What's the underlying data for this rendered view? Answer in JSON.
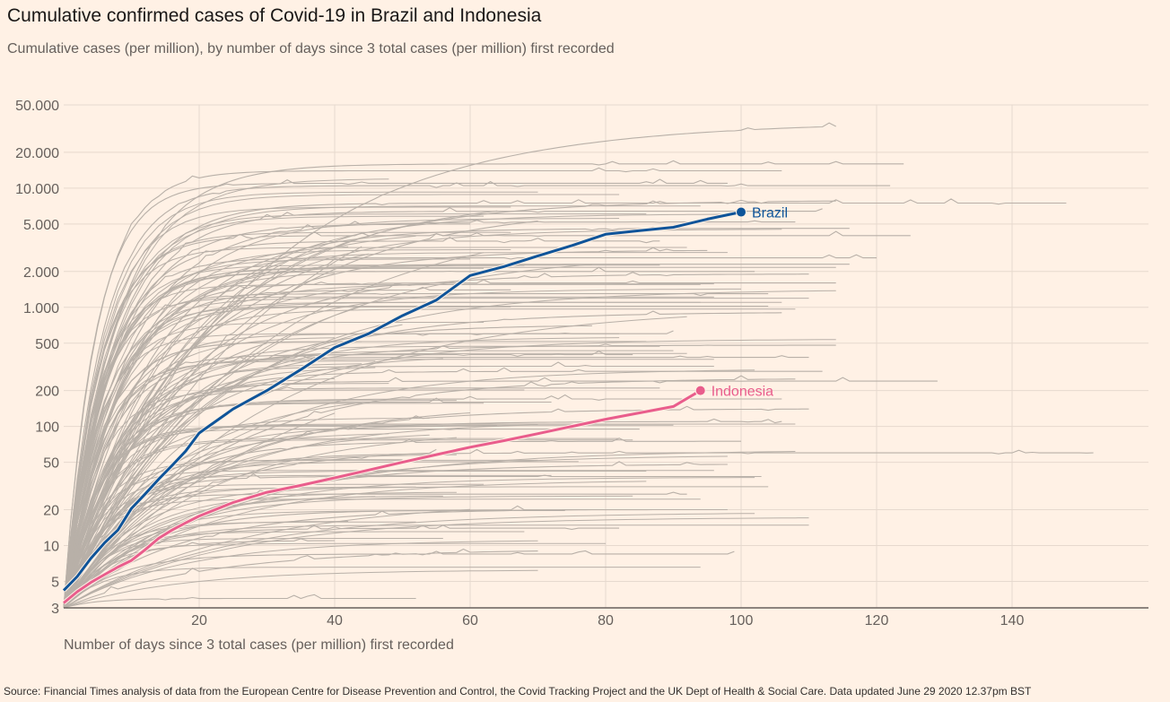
{
  "header": {
    "title": "Cumulative confirmed cases of Covid-19 in Brazil and Indonesia",
    "subtitle": "Cumulative cases (per million), by number of days since 3 total cases (per million) first recorded"
  },
  "footer": {
    "source": "Source: Financial Times analysis of data from the European Centre for Disease Prevention and Control, the Covid Tracking Project and the UK Dept of Health & Social Care. Data updated June 29 2020 12.37pm BST"
  },
  "colors": {
    "background": "#fff1e5",
    "grid": "#e6d9ce",
    "axis": "#66605c",
    "other": "#b8b0a8",
    "brazil": "#0f5499",
    "indonesia": "#e95d8c"
  },
  "chart_data": {
    "type": "line",
    "title": "Cumulative confirmed cases of Covid-19 in Brazil and Indonesia",
    "subtitle": "Cumulative cases (per million), by number of days since 3 total cases (per million) first recorded",
    "xlabel": "Number of days since 3 total cases (per million) first recorded",
    "ylabel": "",
    "yscale": "log",
    "xlim": [
      0,
      160
    ],
    "ylim": [
      3,
      50000
    ],
    "x_ticks": [
      20,
      40,
      60,
      80,
      100,
      120,
      140
    ],
    "x_tick_labels": [
      "20",
      "40",
      "60",
      "80",
      "100",
      "120",
      "140"
    ],
    "y_ticks": [
      3,
      5,
      10,
      20,
      50,
      100,
      200,
      500,
      1000,
      2000,
      5000,
      10000,
      20000,
      50000
    ],
    "y_tick_labels": [
      "3",
      "5",
      "10",
      "20",
      "50",
      "100",
      "200",
      "500",
      "1.000",
      "2.000",
      "5.000",
      "10.000",
      "20.000",
      "50.000"
    ],
    "grid": true,
    "highlighted_series": [
      {
        "name": "Brazil",
        "label": "Brazil",
        "color": "#0f5499",
        "x": [
          0,
          2,
          4,
          6,
          8,
          10,
          12,
          14,
          16,
          18,
          20,
          25,
          30,
          35,
          40,
          45,
          50,
          55,
          60,
          65,
          70,
          75,
          80,
          85,
          90,
          95,
          100
        ],
        "y": [
          4.2,
          5.5,
          7.8,
          10.5,
          13.5,
          20.5,
          27,
          36,
          47,
          62,
          88,
          140,
          200,
          300,
          460,
          600,
          850,
          1150,
          1850,
          2200,
          2700,
          3300,
          4100,
          4400,
          4700,
          5500,
          6300
        ]
      },
      {
        "name": "Indonesia",
        "label": "Indonesia",
        "color": "#e95d8c",
        "x": [
          0,
          2,
          4,
          6,
          8,
          10,
          12,
          14,
          16,
          18,
          20,
          25,
          30,
          35,
          40,
          45,
          50,
          55,
          60,
          65,
          70,
          75,
          80,
          85,
          90,
          94
        ],
        "y": [
          3.3,
          4.1,
          4.9,
          5.7,
          6.6,
          7.5,
          9.2,
          11.5,
          13.5,
          15.5,
          17.7,
          23,
          28,
          32,
          37,
          43,
          50,
          58,
          67,
          76,
          87,
          100,
          115,
          130,
          147,
          200
        ]
      }
    ],
    "other_series_note": "Approximately 150 other countries shown as thin grey lines (unlabelled)",
    "other_series_endpoints": [
      {
        "days": 114,
        "value": 33000
      },
      {
        "days": 106,
        "value": 14000
      },
      {
        "days": 124,
        "value": 16000
      },
      {
        "days": 122,
        "value": 10500
      },
      {
        "days": 148,
        "value": 7500
      },
      {
        "days": 98,
        "value": 11000
      },
      {
        "days": 114,
        "value": 7800
      },
      {
        "days": 112,
        "value": 6400
      },
      {
        "days": 108,
        "value": 5200
      },
      {
        "days": 116,
        "value": 4600
      },
      {
        "days": 125,
        "value": 4000
      },
      {
        "days": 120,
        "value": 2600
      },
      {
        "days": 116,
        "value": 2300
      },
      {
        "days": 110,
        "value": 1900
      },
      {
        "days": 114,
        "value": 1600
      },
      {
        "days": 104,
        "value": 1300
      },
      {
        "days": 106,
        "value": 900
      },
      {
        "days": 114,
        "value": 480
      },
      {
        "days": 110,
        "value": 380
      },
      {
        "days": 129,
        "value": 240
      },
      {
        "days": 112,
        "value": 290
      },
      {
        "days": 108,
        "value": 250
      },
      {
        "days": 106,
        "value": 170
      },
      {
        "days": 110,
        "value": 140
      },
      {
        "days": 106,
        "value": 110
      },
      {
        "days": 152,
        "value": 60
      },
      {
        "days": 100,
        "value": 75
      },
      {
        "days": 98,
        "value": 48
      },
      {
        "days": 103,
        "value": 38
      },
      {
        "days": 92,
        "value": 27
      },
      {
        "days": 98,
        "value": 20
      },
      {
        "days": 78,
        "value": 20
      },
      {
        "days": 82,
        "value": 14
      },
      {
        "days": 99,
        "value": 8.5
      },
      {
        "days": 70,
        "value": 9
      },
      {
        "days": 52,
        "value": 3.6
      },
      {
        "days": 40,
        "value": 11
      },
      {
        "days": 30,
        "value": 500
      },
      {
        "days": 45,
        "value": 2800
      },
      {
        "days": 60,
        "value": 5000
      },
      {
        "days": 70,
        "value": 5300
      },
      {
        "days": 88,
        "value": 3600
      },
      {
        "days": 95,
        "value": 3000
      },
      {
        "days": 102,
        "value": 2000
      },
      {
        "days": 66,
        "value": 1400
      },
      {
        "days": 78,
        "value": 700
      },
      {
        "days": 90,
        "value": 600
      },
      {
        "days": 84,
        "value": 400
      },
      {
        "days": 96,
        "value": 320
      },
      {
        "days": 88,
        "value": 210
      },
      {
        "days": 72,
        "value": 160
      },
      {
        "days": 60,
        "value": 130
      },
      {
        "days": 85,
        "value": 95
      },
      {
        "days": 55,
        "value": 60
      }
    ]
  }
}
